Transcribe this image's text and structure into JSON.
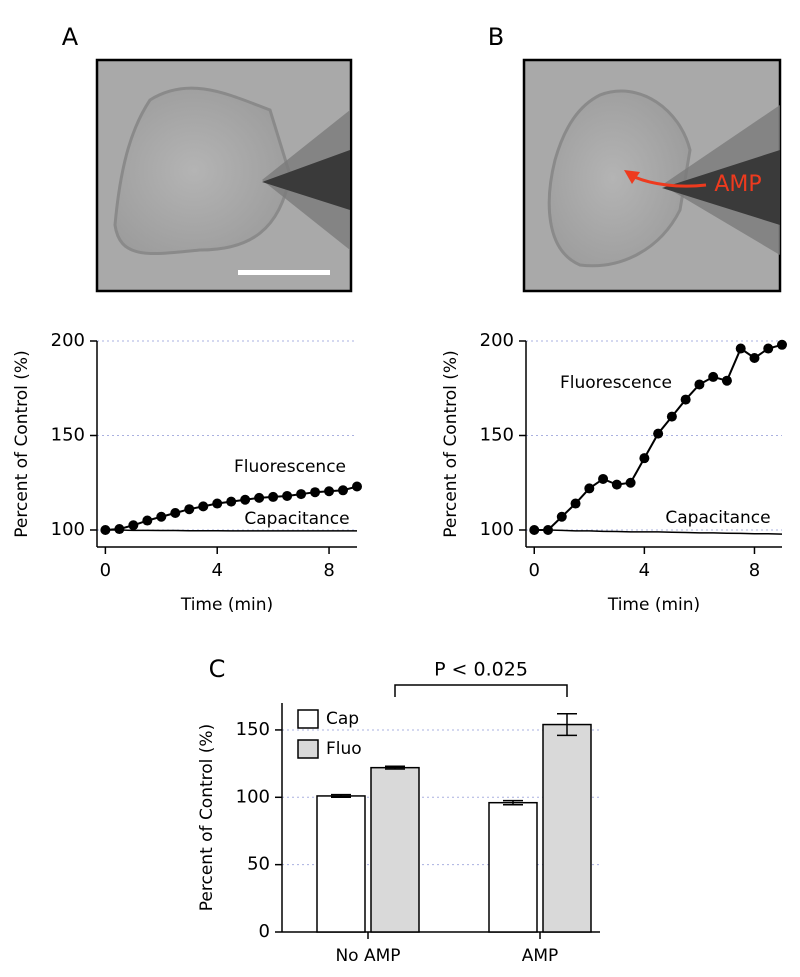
{
  "panel_labels": [
    "A",
    "B",
    "C"
  ],
  "image_annotation": "AMP",
  "chart_data": [
    {
      "type": "line",
      "xlabel": "Time (min)",
      "ylabel": "Percent of Control (%)",
      "x": [
        0,
        0.5,
        1,
        1.5,
        2,
        2.5,
        3,
        3.5,
        4,
        4.5,
        5,
        5.5,
        6,
        6.5,
        7,
        7.5,
        8,
        8.5,
        9
      ],
      "series": [
        {
          "name": "Fluorescence",
          "color": "#000000",
          "marker": true,
          "values": [
            100,
            100.5,
            102.5,
            105,
            107,
            109,
            111,
            112.5,
            114,
            115,
            116,
            117,
            117.5,
            118,
            119,
            120,
            120.5,
            121,
            123
          ]
        },
        {
          "name": "Capacitance",
          "color": "#000000",
          "marker": false,
          "values": [
            100,
            100,
            99.8,
            99.8,
            99.7,
            99.7,
            99.6,
            99.6,
            99.6,
            99.5,
            99.5,
            99.5,
            99.5,
            99.5,
            99.5,
            99.5,
            99.5,
            99.5,
            99.5
          ]
        }
      ],
      "xlim": [
        -0.3,
        9
      ],
      "ylim": [
        91,
        200
      ],
      "xticks": [
        0,
        4,
        8
      ],
      "yticks": [
        100,
        150,
        200
      ],
      "grid": true
    },
    {
      "type": "line",
      "xlabel": "Time (min)",
      "ylabel": "Percent of Control (%)",
      "x": [
        0,
        0.5,
        1,
        1.5,
        2,
        2.5,
        3,
        3.5,
        4,
        4.5,
        5,
        5.5,
        6,
        6.5,
        7,
        7.5,
        8,
        8.5,
        9
      ],
      "series": [
        {
          "name": "Fluorescence",
          "color": "#000000",
          "marker": true,
          "values": [
            100,
            100,
            107,
            114,
            122,
            127,
            124,
            125,
            138,
            151,
            160,
            169,
            177,
            181,
            179,
            196,
            191,
            196,
            198
          ]
        },
        {
          "name": "Capacitance",
          "color": "#000000",
          "marker": false,
          "values": [
            100,
            100,
            99.8,
            99.5,
            99.5,
            99.3,
            99.2,
            99,
            99,
            99,
            98.8,
            98.7,
            98.5,
            98.5,
            98.3,
            98.2,
            98,
            98,
            97.8
          ]
        }
      ],
      "xlim": [
        -0.3,
        9
      ],
      "ylim": [
        91,
        200
      ],
      "xticks": [
        0,
        4,
        8
      ],
      "yticks": [
        100,
        150,
        200
      ],
      "grid": true
    },
    {
      "type": "bar",
      "ylabel": "Percent of Control (%)",
      "categories": [
        "No AMP",
        "AMP"
      ],
      "series": [
        {
          "name": "Cap",
          "color": "#ffffff",
          "values": [
            101,
            96
          ],
          "errors": [
            1,
            1.5
          ]
        },
        {
          "name": "Fluo",
          "color": "#d9d9d9",
          "values": [
            122,
            154
          ],
          "errors": [
            1,
            8
          ]
        }
      ],
      "ylim": [
        0,
        170
      ],
      "yticks": [
        0,
        50,
        100,
        150
      ],
      "grid": true,
      "legend": "upper left",
      "annotation": "P < 0.025"
    }
  ]
}
